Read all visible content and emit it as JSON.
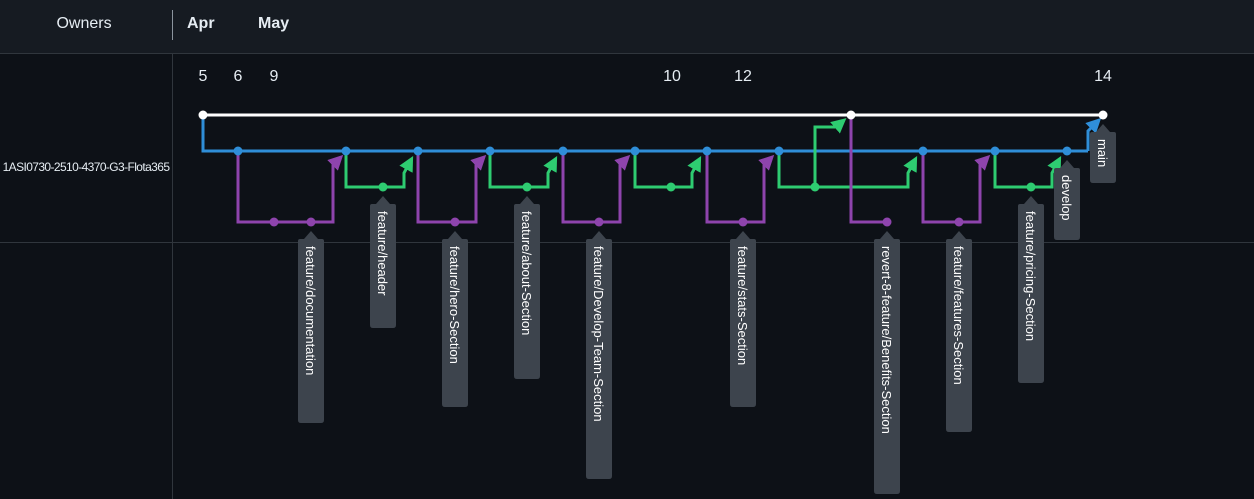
{
  "header": {
    "owners_label": "Owners",
    "months": [
      "Apr",
      "May"
    ]
  },
  "timeline": {
    "day_ticks": [
      "5",
      "6",
      "9",
      "10",
      "12",
      "14"
    ]
  },
  "repository": {
    "name": "1ASI0730-2510-4370-G3-Flota365"
  },
  "branches": {
    "main": "main",
    "develop": "develop",
    "features": [
      "feature/documentation",
      "feature/header",
      "feature/hero-Section",
      "feature/about-Section",
      "feature/Develop-Team-Section",
      "feature/stats-Section",
      "revert-8-feature/Benefits-Section",
      "feature/features-Section",
      "feature/pricing-Section"
    ]
  },
  "colors": {
    "main": "#ffffff",
    "develop": "#2f8ed8",
    "purple_branch": "#8e44ad",
    "green_branch": "#2ecc71",
    "label_bg": "#3d444d",
    "background": "#0d1117",
    "header_bg": "#161b22"
  }
}
